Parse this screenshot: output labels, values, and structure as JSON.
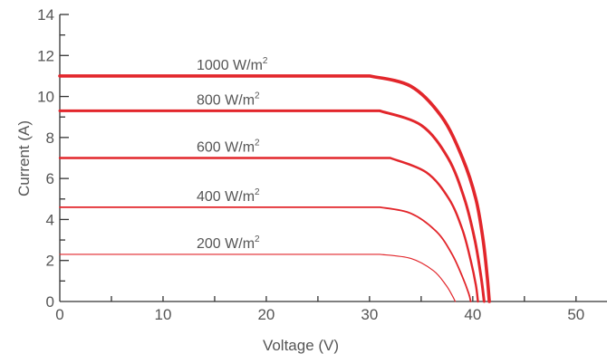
{
  "chart_data": {
    "type": "line",
    "title": "",
    "xlabel": "Voltage (V)",
    "ylabel": "Current (A)",
    "xlim": [
      0,
      53
    ],
    "ylim": [
      0,
      14
    ],
    "x_ticks": [
      0,
      10,
      20,
      30,
      40,
      50
    ],
    "y_ticks": [
      0,
      2,
      4,
      6,
      8,
      10,
      12,
      14
    ],
    "grid": false,
    "accent_color": "#e2262b",
    "axis_color": "#333333",
    "series": [
      {
        "name": "1000 W/m2",
        "label_base": "1000 W/m",
        "label_sup": "2",
        "x": [
          0,
          30,
          34,
          37,
          39,
          40.3,
          41,
          41.4,
          41.6
        ],
        "y": [
          11.0,
          11.0,
          10.5,
          9.0,
          7.0,
          5.0,
          3.0,
          1.2,
          0
        ],
        "stroke_width": 3.6
      },
      {
        "name": "800 W/m2",
        "label_base": "800 W/m",
        "label_sup": "2",
        "x": [
          0,
          31,
          35,
          37.6,
          39.2,
          40.2,
          40.8,
          41.1
        ],
        "y": [
          9.3,
          9.3,
          8.6,
          7.0,
          5.0,
          3.0,
          1.2,
          0
        ],
        "stroke_width": 3.0
      },
      {
        "name": "600 W/m2",
        "label_base": "600 W/m",
        "label_sup": "2",
        "x": [
          0,
          32,
          35.5,
          37.7,
          39.0,
          39.8,
          40.3,
          40.5
        ],
        "y": [
          7.0,
          7.0,
          6.3,
          5.0,
          3.5,
          2.0,
          0.8,
          0
        ],
        "stroke_width": 2.4
      },
      {
        "name": "400 W/m2",
        "label_base": "400 W/m",
        "label_sup": "2",
        "x": [
          0,
          31,
          34,
          36.5,
          38.0,
          39.0,
          39.6,
          39.8
        ],
        "y": [
          4.6,
          4.6,
          4.3,
          3.4,
          2.3,
          1.2,
          0.4,
          0
        ],
        "stroke_width": 1.8
      },
      {
        "name": "200 W/m2",
        "label_base": "200 W/m",
        "label_sup": "2",
        "x": [
          0,
          31,
          34,
          36.2,
          37.4,
          38.0,
          38.3
        ],
        "y": [
          2.3,
          2.3,
          2.1,
          1.5,
          0.8,
          0.3,
          0
        ],
        "stroke_width": 1.2
      }
    ]
  }
}
